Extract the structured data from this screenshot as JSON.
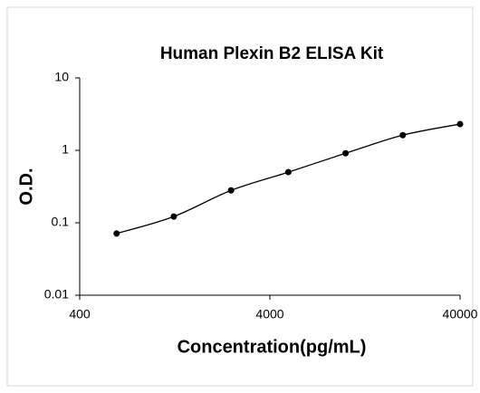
{
  "chart_data": {
    "type": "scatter",
    "title": "Human Plexin B2 ELISA Kit",
    "xlabel": "Concentration(pg/mL)",
    "ylabel": "O.D.",
    "x": [
      625,
      1250,
      2500,
      5000,
      10000,
      20000,
      40000
    ],
    "values": [
      0.071,
      0.122,
      0.28,
      0.5,
      0.91,
      1.62,
      2.3
    ],
    "color": "#000000",
    "xscale": "log",
    "yscale": "log",
    "xlim": [
      400,
      40000
    ],
    "xticks": [
      400,
      4000,
      40000
    ],
    "ylim": [
      0.01,
      10
    ],
    "yticks": [
      0.01,
      0.1,
      1,
      10
    ]
  }
}
